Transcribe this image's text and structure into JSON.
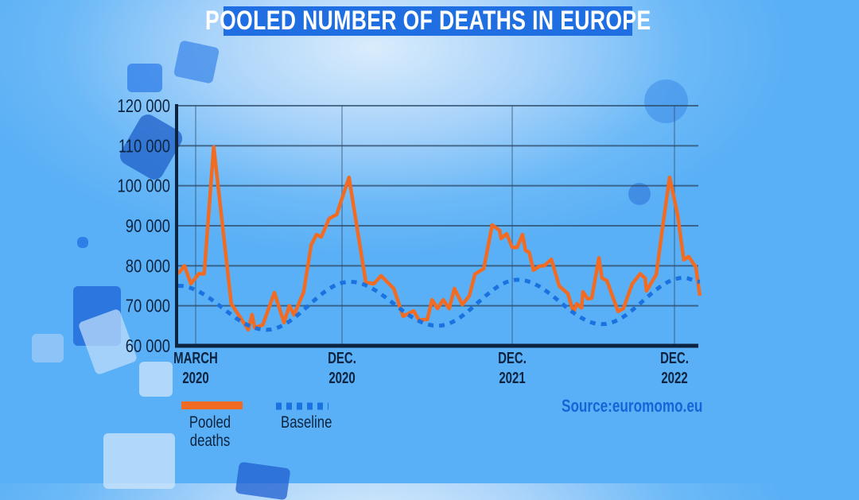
{
  "title": "POOLED NUMBER OF DEATHS IN EUROPE",
  "source": "Source:euromomo.eu",
  "colors": {
    "pooled": "#f26b22",
    "baseline": "#1a72e0",
    "title_bg": "#1f6fe3",
    "axis": "#0c2440"
  },
  "chart_data": {
    "type": "line",
    "title": "POOLED NUMBER OF DEATHS IN EUROPE",
    "xlabel": "",
    "ylabel": "",
    "ylim": [
      60000,
      120000
    ],
    "yticks": [
      {
        "value": 120000,
        "label": "120 000"
      },
      {
        "value": 110000,
        "label": "110 000"
      },
      {
        "value": 100000,
        "label": "100 000"
      },
      {
        "value": 90000,
        "label": "90 000"
      },
      {
        "value": 80000,
        "label": "80 000"
      },
      {
        "value": 70000,
        "label": "70 000"
      },
      {
        "value": 60000,
        "label": "60 000"
      }
    ],
    "xticks": [
      {
        "date": "2020-03-01",
        "line1": "MARCH",
        "line2": "2020"
      },
      {
        "date": "2020-12-01",
        "line1": "DEC.",
        "line2": "2020"
      },
      {
        "date": "2021-12-01",
        "line1": "DEC.",
        "line2": "2021"
      },
      {
        "date": "2022-12-01",
        "line1": "DEC.",
        "line2": "2022"
      }
    ],
    "grid": true,
    "legend_position": "bottom-left",
    "series": [
      {
        "name": "Pooled deaths",
        "style": "solid",
        "color": "#f26b22",
        "points": [
          [
            "2020-01-28",
            78000
          ],
          [
            "2020-02-09",
            80000
          ],
          [
            "2020-02-21",
            75500
          ],
          [
            "2020-03-07",
            78000
          ],
          [
            "2020-03-17",
            78000
          ],
          [
            "2020-04-04",
            109700
          ],
          [
            "2020-05-07",
            70500
          ],
          [
            "2020-06-08",
            64000
          ],
          [
            "2020-06-15",
            67800
          ],
          [
            "2020-06-20",
            64500
          ],
          [
            "2020-07-05",
            65200
          ],
          [
            "2020-07-27",
            73300
          ],
          [
            "2020-08-14",
            65800
          ],
          [
            "2020-08-24",
            70000
          ],
          [
            "2020-09-02",
            67700
          ],
          [
            "2020-09-20",
            73500
          ],
          [
            "2020-10-04",
            85200
          ],
          [
            "2020-10-14",
            87800
          ],
          [
            "2020-10-23",
            87200
          ],
          [
            "2020-11-07",
            91800
          ],
          [
            "2020-11-21",
            92800
          ],
          [
            "2020-12-16",
            102100
          ],
          [
            "2021-01-21",
            75900
          ],
          [
            "2021-02-07",
            75500
          ],
          [
            "2021-02-23",
            77500
          ],
          [
            "2021-03-22",
            74300
          ],
          [
            "2021-04-11",
            67400
          ],
          [
            "2021-05-04",
            68700
          ],
          [
            "2021-05-15",
            66400
          ],
          [
            "2021-06-02",
            66600
          ],
          [
            "2021-06-12",
            71500
          ],
          [
            "2021-06-24",
            69300
          ],
          [
            "2021-07-06",
            71500
          ],
          [
            "2021-07-19",
            69300
          ],
          [
            "2021-07-30",
            74300
          ],
          [
            "2021-08-16",
            70300
          ],
          [
            "2021-08-31",
            72500
          ],
          [
            "2021-09-12",
            77900
          ],
          [
            "2021-10-01",
            79300
          ],
          [
            "2021-10-19",
            90200
          ],
          [
            "2021-11-04",
            88800
          ],
          [
            "2021-11-07",
            86800
          ],
          [
            "2021-11-19",
            88000
          ],
          [
            "2021-12-01",
            84600
          ],
          [
            "2021-12-12",
            84600
          ],
          [
            "2021-12-24",
            87800
          ],
          [
            "2021-12-31",
            83800
          ],
          [
            "2022-01-08",
            83400
          ],
          [
            "2022-01-18",
            78900
          ],
          [
            "2022-01-31",
            79900
          ],
          [
            "2022-02-11",
            80000
          ],
          [
            "2022-02-27",
            81600
          ],
          [
            "2022-03-17",
            74900
          ],
          [
            "2022-04-05",
            73100
          ],
          [
            "2022-04-18",
            68300
          ],
          [
            "2022-04-25",
            70500
          ],
          [
            "2022-05-06",
            69500
          ],
          [
            "2022-05-09",
            73500
          ],
          [
            "2022-05-20",
            71700
          ],
          [
            "2022-05-29",
            71900
          ],
          [
            "2022-06-14",
            82000
          ],
          [
            "2022-06-21",
            76900
          ],
          [
            "2022-07-02",
            76300
          ],
          [
            "2022-07-27",
            68600
          ],
          [
            "2022-08-08",
            69300
          ],
          [
            "2022-08-28",
            75500
          ],
          [
            "2022-09-15",
            78000
          ],
          [
            "2022-09-26",
            76900
          ],
          [
            "2022-09-29",
            73700
          ],
          [
            "2022-10-21",
            77800
          ],
          [
            "2022-11-04",
            89400
          ],
          [
            "2022-11-20",
            102100
          ],
          [
            "2022-12-08",
            92800
          ],
          [
            "2022-12-22",
            81500
          ],
          [
            "2023-01-02",
            82300
          ],
          [
            "2023-01-18",
            79700
          ],
          [
            "2023-01-27",
            72500
          ]
        ]
      },
      {
        "name": "Baseline",
        "style": "dashed",
        "color": "#1a72e0",
        "points": [
          [
            "2020-01-28",
            75000
          ],
          [
            "2020-07-12",
            64000
          ],
          [
            "2020-12-18",
            76000
          ],
          [
            "2021-06-24",
            65000
          ],
          [
            "2021-12-14",
            76500
          ],
          [
            "2022-06-21",
            65400
          ],
          [
            "2022-12-22",
            77000
          ],
          [
            "2023-01-27",
            76000
          ]
        ]
      }
    ]
  }
}
